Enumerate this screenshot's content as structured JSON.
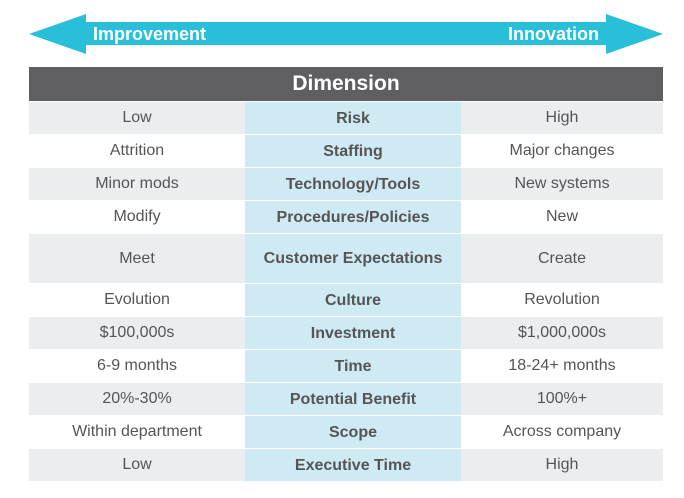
{
  "arrow": {
    "left_label": "Improvement",
    "right_label": "Innovation",
    "color": "#29bfd9"
  },
  "header": "Dimension",
  "rows": [
    {
      "left": "Low",
      "dimension": "Risk",
      "right": "High"
    },
    {
      "left": "Attrition",
      "dimension": "Staffing",
      "right": "Major changes"
    },
    {
      "left": "Minor mods",
      "dimension": "Technology/Tools",
      "right": "New systems"
    },
    {
      "left": "Modify",
      "dimension": "Procedures/Policies",
      "right": "New"
    },
    {
      "left": "Meet",
      "dimension": "Customer Expectations",
      "right": "Create"
    },
    {
      "left": "Evolution",
      "dimension": "Culture",
      "right": "Revolution"
    },
    {
      "left": "$100,000s",
      "dimension": "Investment",
      "right": "$1,000,000s"
    },
    {
      "left": "6-9 months",
      "dimension": "Time",
      "right": "18-24+ months"
    },
    {
      "left": "20%-30%",
      "dimension": "Potential Benefit",
      "right": "100%+"
    },
    {
      "left": "Within department",
      "dimension": "Scope",
      "right": "Across company"
    },
    {
      "left": "Low",
      "dimension": "Executive Time",
      "right": "High"
    }
  ]
}
